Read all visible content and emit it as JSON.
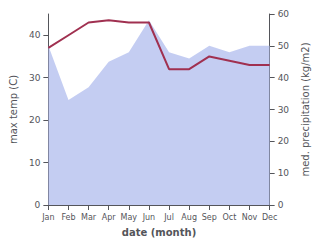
{
  "chart_data": {
    "type": "line",
    "xlabel": "date (month)",
    "ylabel": "max temp (C)",
    "y2label": "med. precipitation (kg/m2)",
    "categories": [
      "Jan",
      "Feb",
      "Mar",
      "Apr",
      "May",
      "Jun",
      "Jul",
      "Aug",
      "Sep",
      "Oct",
      "Nov",
      "Dec"
    ],
    "series": [
      {
        "type": "area",
        "axis": "y2",
        "color": "#b0bcee",
        "values": [
          50,
          33,
          37,
          45,
          48,
          58,
          48,
          46,
          50,
          48,
          50,
          50
        ]
      },
      {
        "type": "line",
        "color": "#a03050",
        "values": [
          37,
          40,
          43,
          43.5,
          43,
          43,
          32,
          32,
          35,
          34,
          33,
          33
        ]
      }
    ],
    "ylim": [
      0,
      45
    ],
    "yticks": [
      0,
      10,
      20,
      30,
      40
    ],
    "y2lim": [
      0,
      60
    ],
    "y2ticks": [
      0,
      10,
      20,
      30,
      40,
      50,
      60
    ],
    "grid": false
  }
}
